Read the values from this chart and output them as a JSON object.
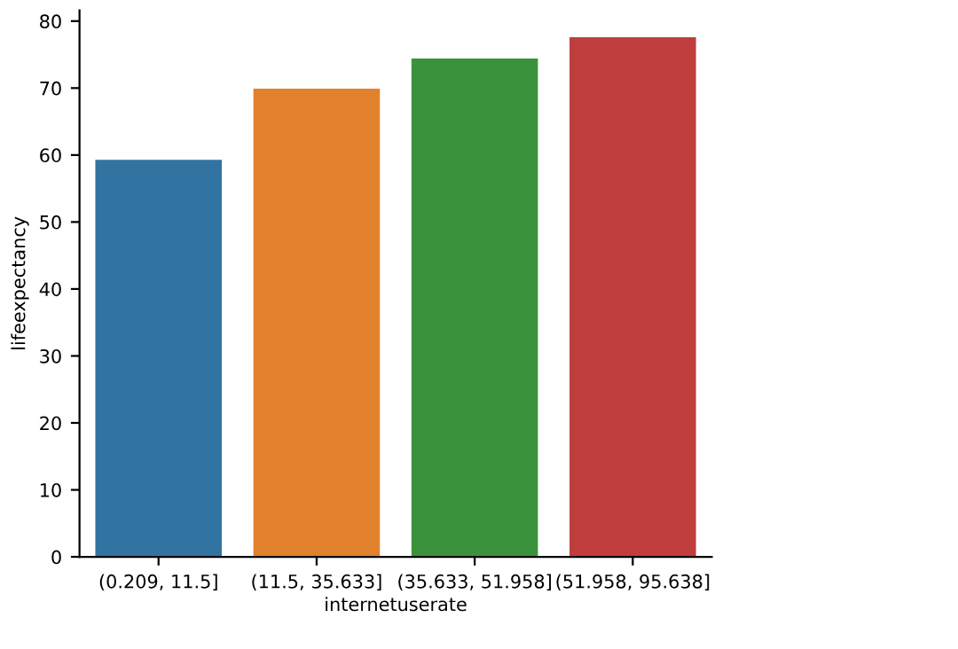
{
  "chart_data": {
    "type": "bar",
    "xlabel": "internetuserate",
    "ylabel": "lifeexpectancy",
    "categories": [
      "(0.209, 11.5]",
      "(11.5, 35.633]",
      "(35.633, 51.958]",
      "(51.958, 95.638]"
    ],
    "values": [
      59.3,
      69.9,
      74.4,
      77.6
    ],
    "colors": [
      "#3274a1",
      "#e1812c",
      "#3a923a",
      "#c03d3e"
    ],
    "ylim": [
      0,
      81.6
    ],
    "yticks": [
      0,
      10,
      20,
      30,
      40,
      50,
      60,
      70,
      80
    ],
    "grid": false
  }
}
